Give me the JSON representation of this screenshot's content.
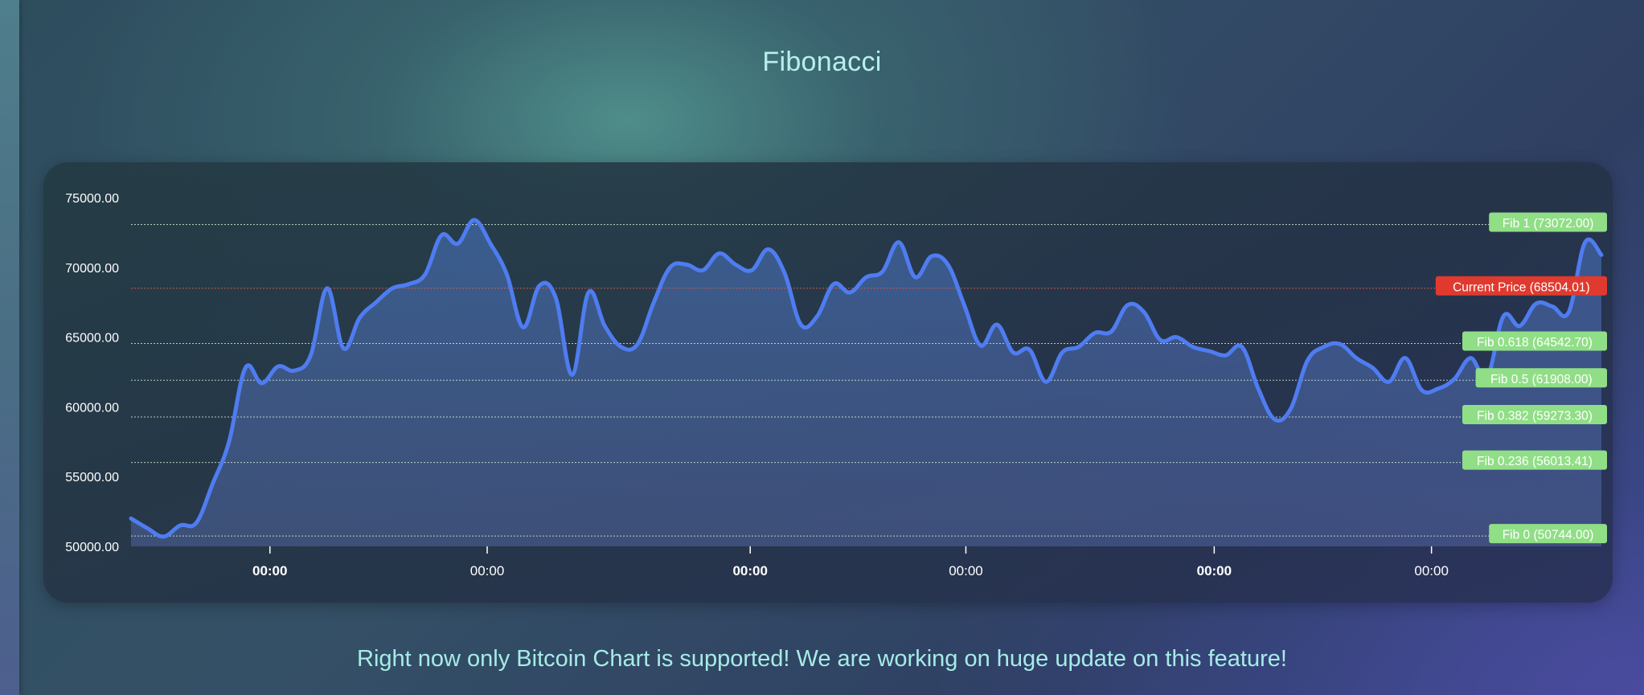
{
  "page": {
    "title": "Fibonacci",
    "footer": "Right now only Bitcoin Chart is supported! We are working on huge update on this feature!"
  },
  "colors": {
    "line": "#4f7cf0",
    "fib_label": "#90de86",
    "current_price_label": "#e03a2f",
    "title_text": "#b7f0ec",
    "footer_text": "#a5ece6"
  },
  "chart_data": {
    "type": "area",
    "title": "",
    "xlabel": "",
    "ylabel": "",
    "ylim": [
      50000,
      75000
    ],
    "y_ticks": [
      "50000.00",
      "55000.00",
      "60000.00",
      "65000.00",
      "70000.00",
      "75000.00"
    ],
    "x_ticks": [
      {
        "label": "00:00",
        "x": 7.5,
        "bold": true
      },
      {
        "label": "00:00",
        "x": 20.8,
        "bold": false
      },
      {
        "label": "00:00",
        "x": 36.9,
        "bold": true
      },
      {
        "label": "00:00",
        "x": 50.1,
        "bold": false
      },
      {
        "label": "00:00",
        "x": 65.3,
        "bold": true
      },
      {
        "label": "00:00",
        "x": 78.6,
        "bold": false
      }
    ],
    "xlim": [
      -1,
      89
    ],
    "grid": false,
    "series": [
      {
        "values": [
          [
            -1,
            52000
          ],
          [
            0,
            51300
          ],
          [
            1,
            50700
          ],
          [
            2,
            51500
          ],
          [
            3,
            51700
          ],
          [
            4,
            54500
          ],
          [
            5,
            57500
          ],
          [
            6,
            62800
          ],
          [
            7,
            61700
          ],
          [
            8,
            62900
          ],
          [
            9,
            62600
          ],
          [
            10,
            63700
          ],
          [
            11,
            68500
          ],
          [
            12,
            64200
          ],
          [
            13,
            66400
          ],
          [
            14,
            67500
          ],
          [
            15,
            68500
          ],
          [
            16,
            68800
          ],
          [
            17,
            69500
          ],
          [
            18,
            72300
          ],
          [
            19,
            71700
          ],
          [
            20,
            73400
          ],
          [
            21,
            71700
          ],
          [
            22,
            69500
          ],
          [
            23,
            65700
          ],
          [
            24,
            68700
          ],
          [
            25,
            67800
          ],
          [
            26,
            62300
          ],
          [
            27,
            68200
          ],
          [
            28,
            65800
          ],
          [
            29,
            64300
          ],
          [
            30,
            64500
          ],
          [
            31,
            67500
          ],
          [
            32,
            70000
          ],
          [
            33,
            70200
          ],
          [
            34,
            69800
          ],
          [
            35,
            71000
          ],
          [
            36,
            70200
          ],
          [
            37,
            69800
          ],
          [
            38,
            71300
          ],
          [
            39,
            69600
          ],
          [
            40,
            65900
          ],
          [
            41,
            66500
          ],
          [
            42,
            68800
          ],
          [
            43,
            68200
          ],
          [
            44,
            69300
          ],
          [
            45,
            69700
          ],
          [
            46,
            71800
          ],
          [
            47,
            69300
          ],
          [
            48,
            70800
          ],
          [
            49,
            70200
          ],
          [
            50,
            67300
          ],
          [
            51,
            64400
          ],
          [
            52,
            65900
          ],
          [
            53,
            63900
          ],
          [
            54,
            64100
          ],
          [
            55,
            61800
          ],
          [
            56,
            63900
          ],
          [
            57,
            64300
          ],
          [
            58,
            65300
          ],
          [
            59,
            65400
          ],
          [
            60,
            67300
          ],
          [
            61,
            66800
          ],
          [
            62,
            64800
          ],
          [
            63,
            65000
          ],
          [
            64,
            64300
          ],
          [
            65,
            64000
          ],
          [
            66,
            63700
          ],
          [
            67,
            64300
          ],
          [
            68,
            61300
          ],
          [
            69,
            59100
          ],
          [
            70,
            59900
          ],
          [
            71,
            63300
          ],
          [
            72,
            64300
          ],
          [
            73,
            64500
          ],
          [
            74,
            63500
          ],
          [
            75,
            62800
          ],
          [
            76,
            61800
          ],
          [
            77,
            63500
          ],
          [
            78,
            61200
          ],
          [
            79,
            61300
          ],
          [
            80,
            62000
          ],
          [
            81,
            63500
          ],
          [
            82,
            62100
          ],
          [
            83,
            66500
          ],
          [
            84,
            65800
          ],
          [
            85,
            67400
          ],
          [
            86,
            67200
          ],
          [
            87,
            66800
          ],
          [
            88,
            71800
          ],
          [
            89,
            70900
          ]
        ]
      }
    ],
    "current_price": {
      "label": "Current Price (68504.01)",
      "value": 68504.01
    },
    "fib_levels": [
      {
        "label": "Fib 1 (73072.00)",
        "value": 73072.0
      },
      {
        "label": "Fib 0.618 (64542.70)",
        "value": 64542.7
      },
      {
        "label": "Fib 0.5 (61908.00)",
        "value": 61908.0
      },
      {
        "label": "Fib 0.382 (59273.30)",
        "value": 59273.3
      },
      {
        "label": "Fib 0.236 (56013.41)",
        "value": 56013.41
      },
      {
        "label": "Fib 0 (50744.00)",
        "value": 50744.0
      }
    ]
  }
}
